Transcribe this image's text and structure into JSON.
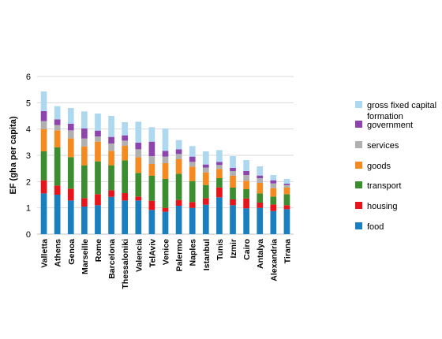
{
  "chart_data": {
    "type": "bar",
    "stacked": true,
    "ylabel": "EF (gha per capita)",
    "xlabel": "",
    "ylim": [
      0,
      6
    ],
    "yticks": [
      0,
      1,
      2,
      3,
      4,
      5,
      6
    ],
    "grid": true,
    "legend_position": "right",
    "categories": [
      "Valletta",
      "Athens",
      "Genoa",
      "Marseille",
      "Rome",
      "Barcelona",
      "Thessaloniki",
      "Valencia",
      "TelAviv",
      "Venice",
      "Palermo",
      "Naples",
      "Istanbul",
      "Tunis",
      "Izmir",
      "Cairo",
      "Antalya",
      "Alexandria",
      "Tirana"
    ],
    "series": [
      {
        "name": "food",
        "color": "#1a7fbf",
        "values": [
          1.55,
          1.5,
          1.28,
          1.05,
          1.1,
          1.42,
          1.28,
          1.28,
          0.92,
          0.85,
          1.08,
          1.0,
          1.12,
          1.4,
          1.1,
          0.98,
          1.0,
          0.88,
          0.95
        ]
      },
      {
        "name": "housing",
        "color": "#e8141b",
        "values": [
          0.5,
          0.35,
          0.45,
          0.32,
          0.42,
          0.25,
          0.28,
          0.15,
          0.35,
          0.15,
          0.22,
          0.22,
          0.25,
          0.38,
          0.22,
          0.38,
          0.2,
          0.25,
          0.15
        ]
      },
      {
        "name": "transport",
        "color": "#3c8d2f",
        "values": [
          1.1,
          1.45,
          1.2,
          1.25,
          1.25,
          0.95,
          1.25,
          0.9,
          0.95,
          1.1,
          1.0,
          0.8,
          0.5,
          0.35,
          0.45,
          0.35,
          0.35,
          0.3,
          0.42
        ]
      },
      {
        "name": "goods",
        "color": "#f58b20",
        "values": [
          0.85,
          0.65,
          0.72,
          0.72,
          0.75,
          0.55,
          0.55,
          0.6,
          0.45,
          0.6,
          0.55,
          0.55,
          0.48,
          0.35,
          0.45,
          0.32,
          0.4,
          0.32,
          0.25
        ]
      },
      {
        "name": "services",
        "color": "#b0b0b0",
        "values": [
          0.3,
          0.2,
          0.3,
          0.3,
          0.2,
          0.28,
          0.2,
          0.3,
          0.3,
          0.25,
          0.2,
          0.18,
          0.18,
          0.15,
          0.18,
          0.22,
          0.18,
          0.18,
          0.1
        ]
      },
      {
        "name": "government",
        "color": "#8e44ad",
        "values": [
          0.38,
          0.22,
          0.25,
          0.38,
          0.22,
          0.25,
          0.2,
          0.25,
          0.55,
          0.22,
          0.18,
          0.2,
          0.12,
          0.12,
          0.12,
          0.15,
          0.1,
          0.12,
          0.05
        ]
      },
      {
        "name": "gross fixed capital formation",
        "color": "#aed8ef",
        "values": [
          0.75,
          0.5,
          0.6,
          0.65,
          0.65,
          0.8,
          0.5,
          0.8,
          0.55,
          0.85,
          0.35,
          0.4,
          0.5,
          0.45,
          0.45,
          0.42,
          0.35,
          0.2,
          0.18
        ]
      }
    ]
  }
}
